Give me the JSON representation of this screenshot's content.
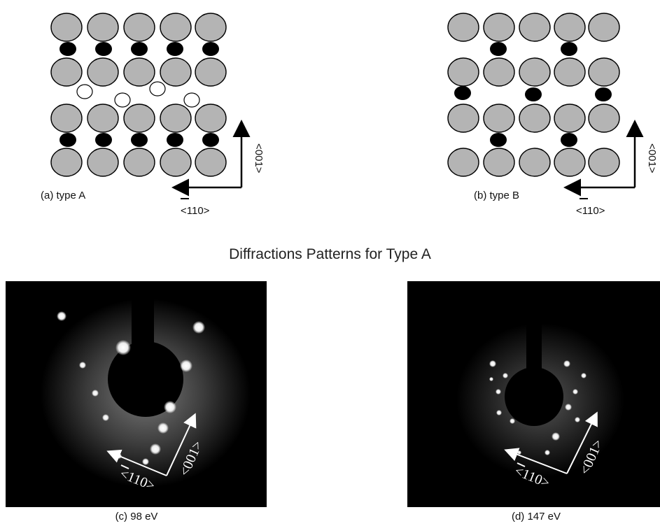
{
  "panel_a": {
    "label": "(a) type A",
    "axis_horizontal": "<110>",
    "axis_vertical": "<001>",
    "rows": 4,
    "cols": 5
  },
  "panel_b": {
    "label": "(b) type B",
    "axis_horizontal": "<110>",
    "axis_vertical": "<001>",
    "rows": 4,
    "cols": 5
  },
  "section_title": "Diffractions Patterns for Type A",
  "panel_c": {
    "caption": "(c) 98 eV",
    "axis_horizontal": "<110>",
    "axis_vertical": "<001>"
  },
  "panel_d": {
    "caption": "(d) 147 eV",
    "axis_horizontal": "<110>",
    "axis_vertical": "<001>"
  },
  "colors": {
    "atom_large": "#b4b4b4",
    "atom_small": "#000000",
    "vacancy": "#ffffff",
    "leed_background": "#000000",
    "leed_spot": "#ffffff"
  }
}
